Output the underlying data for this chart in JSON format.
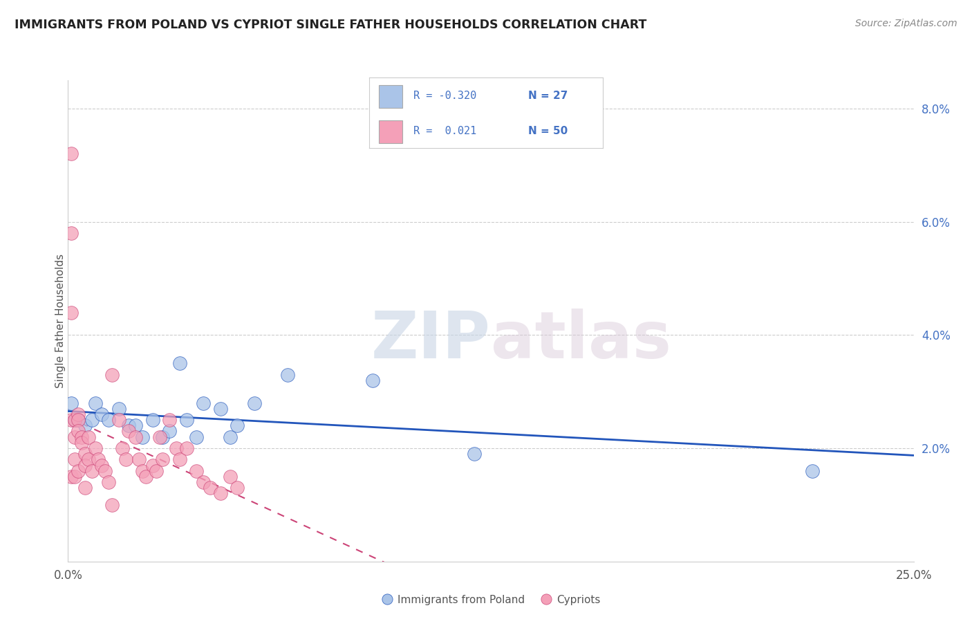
{
  "title": "IMMIGRANTS FROM POLAND VS CYPRIOT SINGLE FATHER HOUSEHOLDS CORRELATION CHART",
  "source": "Source: ZipAtlas.com",
  "ylabel": "Single Father Households",
  "legend_labels": [
    "Immigrants from Poland",
    "Cypriots"
  ],
  "legend_r": [
    -0.32,
    0.021
  ],
  "legend_n": [
    27,
    50
  ],
  "xlim": [
    0.0,
    0.25
  ],
  "ylim": [
    0.0,
    0.085
  ],
  "yticks": [
    0.02,
    0.04,
    0.06,
    0.08
  ],
  "ytick_labels": [
    "2.0%",
    "4.0%",
    "6.0%",
    "8.0%"
  ],
  "color_blue": "#aac4e8",
  "color_pink": "#f4a0b8",
  "line_color_blue": "#2255bb",
  "line_color_pink": "#cc4477",
  "poland_x": [
    0.001,
    0.002,
    0.003,
    0.005,
    0.007,
    0.008,
    0.01,
    0.012,
    0.015,
    0.018,
    0.02,
    0.022,
    0.025,
    0.028,
    0.03,
    0.033,
    0.035,
    0.038,
    0.04,
    0.045,
    0.048,
    0.05,
    0.055,
    0.065,
    0.09,
    0.12,
    0.22
  ],
  "poland_y": [
    0.028,
    0.025,
    0.025,
    0.024,
    0.025,
    0.028,
    0.026,
    0.025,
    0.027,
    0.024,
    0.024,
    0.022,
    0.025,
    0.022,
    0.023,
    0.035,
    0.025,
    0.022,
    0.028,
    0.027,
    0.022,
    0.024,
    0.028,
    0.033,
    0.032,
    0.019,
    0.016
  ],
  "cyprus_x": [
    0.001,
    0.001,
    0.001,
    0.001,
    0.001,
    0.002,
    0.002,
    0.002,
    0.002,
    0.003,
    0.003,
    0.003,
    0.003,
    0.004,
    0.004,
    0.005,
    0.005,
    0.005,
    0.006,
    0.006,
    0.007,
    0.008,
    0.009,
    0.01,
    0.011,
    0.012,
    0.013,
    0.013,
    0.015,
    0.016,
    0.017,
    0.018,
    0.02,
    0.021,
    0.022,
    0.023,
    0.025,
    0.026,
    0.027,
    0.028,
    0.03,
    0.032,
    0.033,
    0.035,
    0.038,
    0.04,
    0.042,
    0.045,
    0.048,
    0.05
  ],
  "cyprus_y": [
    0.072,
    0.058,
    0.044,
    0.025,
    0.015,
    0.025,
    0.022,
    0.018,
    0.015,
    0.026,
    0.025,
    0.023,
    0.016,
    0.022,
    0.021,
    0.019,
    0.017,
    0.013,
    0.022,
    0.018,
    0.016,
    0.02,
    0.018,
    0.017,
    0.016,
    0.014,
    0.033,
    0.01,
    0.025,
    0.02,
    0.018,
    0.023,
    0.022,
    0.018,
    0.016,
    0.015,
    0.017,
    0.016,
    0.022,
    0.018,
    0.025,
    0.02,
    0.018,
    0.02,
    0.016,
    0.014,
    0.013,
    0.012,
    0.015,
    0.013
  ]
}
